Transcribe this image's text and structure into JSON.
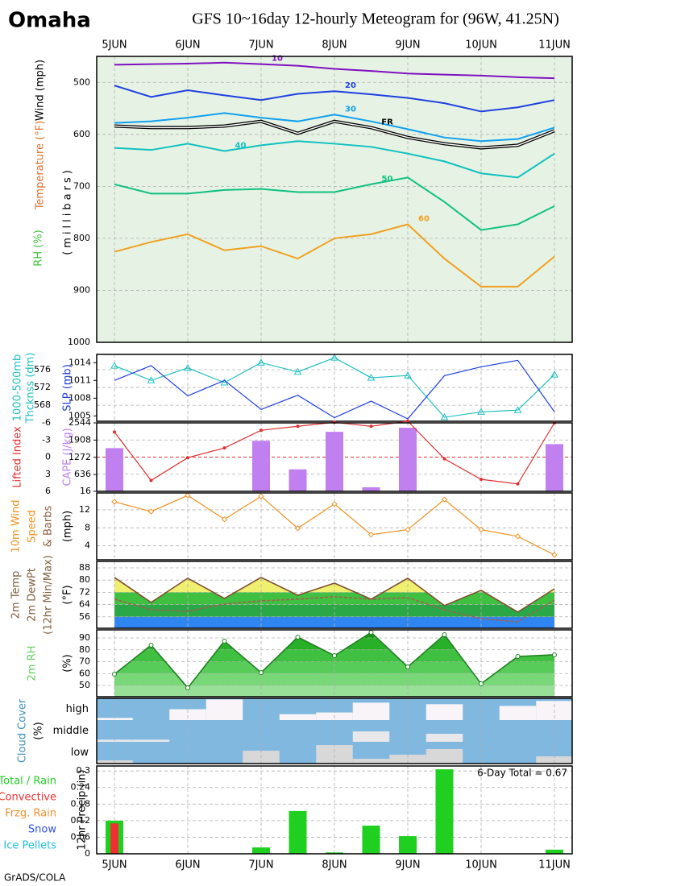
{
  "header": {
    "city": "Omaha",
    "title": "GFS 10~16day 12-hourly Meteogram for (96W, 41.25N)"
  },
  "footer": "GrADS/COLA",
  "chart_data": [
    {
      "type": "contour",
      "categories": [
        "5JUN",
        null,
        "6JUN",
        null,
        "7JUN",
        null,
        "8JUN",
        null,
        "9JUN",
        null,
        "10JUN",
        null,
        "11JUN"
      ],
      "ylabels": [
        {
          "text": "Wind (mph)",
          "color": "#000000"
        },
        {
          "text": "Temperature (°F)",
          "color": "#e07030"
        },
        {
          "text": "RH (%)",
          "color": "#40c040"
        },
        {
          "text": "(millibars)",
          "color": "#000000"
        }
      ],
      "ylim": [
        1000,
        450
      ],
      "yticks": [
        500,
        600,
        700,
        800,
        900,
        1000
      ],
      "grid": true,
      "background": "#e6f3e4",
      "series": [
        {
          "name": "10",
          "color": "#8010c0",
          "values": [
            466,
            465,
            464,
            462,
            465,
            468,
            474,
            478,
            483,
            485,
            487,
            490,
            492
          ]
        },
        {
          "name": "20",
          "color": "#2040e0",
          "values": [
            506,
            528,
            515,
            525,
            534,
            522,
            517,
            523,
            530,
            540,
            556,
            548,
            534
          ]
        },
        {
          "name": "30",
          "color": "#10a0f0",
          "values": [
            578,
            575,
            568,
            559,
            568,
            575,
            562,
            575,
            590,
            606,
            613,
            609,
            587
          ]
        },
        {
          "name": "FR",
          "color": "#000000",
          "values": [
            584,
            587,
            587,
            584,
            575,
            598,
            575,
            587,
            606,
            618,
            626,
            621,
            593
          ]
        },
        {
          "name": "40",
          "color": "#10c0c0",
          "values": [
            626,
            630,
            618,
            632,
            621,
            613,
            618,
            624,
            637,
            652,
            675,
            683,
            637
          ]
        },
        {
          "name": "50",
          "color": "#10c080",
          "values": [
            696,
            714,
            714,
            707,
            705,
            711,
            711,
            696,
            683,
            730,
            784,
            773,
            738
          ]
        },
        {
          "name": "60",
          "color": "#f0a020",
          "values": [
            826,
            807,
            792,
            823,
            815,
            839,
            800,
            792,
            773,
            839,
            893,
            893,
            835
          ]
        }
      ]
    },
    {
      "type": "line",
      "ylabels": [
        {
          "text": "1000-500mb",
          "color": "#20c0c0"
        },
        {
          "text": "Thcknss (dm)",
          "color": "#20c0c0"
        },
        {
          "text": "SLP (mb)",
          "color": "#2040e0"
        }
      ],
      "ylim": [
        564.4,
        579.45
      ],
      "yticks": [
        568,
        572,
        576
      ],
      "y2lim": [
        1004.1,
        1015.4
      ],
      "y2ticks": [
        1005,
        1008,
        1011,
        1014
      ],
      "grid": true,
      "series": [
        {
          "color": "#20c0c0",
          "marker": "triangle",
          "values": [
            576.9,
            573.6,
            576.4,
            573.1,
            577.6,
            575.5,
            578.7,
            574.2,
            574.7,
            565.3,
            566.5,
            566.9,
            574.9
          ]
        },
        {
          "color": "#2040e0",
          "axis": "y2",
          "values": [
            1011.0,
            1013.5,
            1008.4,
            1011.0,
            1006.1,
            1008.5,
            1004.7,
            1007.5,
            1004.5,
            1011.8,
            1013.3,
            1014.4,
            1005.7
          ]
        }
      ]
    },
    {
      "type": "line_bar",
      "ylabels": [
        {
          "text": "Lifted Index",
          "color": "#e03030"
        },
        {
          "text": "CAPE (J/kg)",
          "color": "#c080f0"
        }
      ],
      "ylim": [
        6,
        -6
      ],
      "yticks": [
        -6,
        -3,
        0,
        3,
        6
      ],
      "y2lim": [
        16,
        2544
      ],
      "y2ticks": [
        16,
        636,
        1272,
        1908,
        2544
      ],
      "grid": true,
      "series": [
        {
          "color": "#e03030",
          "marker": "dot",
          "values": [
            -4.4,
            4.1,
            0.1,
            -1.6,
            -4.7,
            -5.4,
            -6.1,
            -5.4,
            -6.3,
            0.3,
            3.9,
            4.7,
            -6.0
          ]
        },
        {
          "color": "#c080f0",
          "axis": "y2",
          "kind": "bar",
          "values": [
            1611,
            null,
            null,
            null,
            1882,
            828,
            2213,
            166,
            2363,
            null,
            null,
            null,
            1761
          ]
        }
      ]
    },
    {
      "type": "line",
      "ylabels": [
        {
          "text": "10m Wind",
          "color": "#f09020"
        },
        {
          "text": "Speed",
          "color": "#f09020"
        },
        {
          "text": "& Barbs",
          "color": "#906040"
        },
        {
          "text": "(mph)",
          "color": "#000000"
        }
      ],
      "ylim": [
        0.9,
        15.75
      ],
      "yticks": [
        4,
        8,
        12
      ],
      "grid": true,
      "series": [
        {
          "color": "#f09020",
          "marker": "diamond",
          "values": [
            13.8,
            11.6,
            15.2,
            9.9,
            15.0,
            7.9,
            13.3,
            6.5,
            7.6,
            14.3,
            7.6,
            6.1,
            2.0
          ]
        }
      ]
    },
    {
      "type": "band_area",
      "ylabels": [
        {
          "text": "2m Temp",
          "color": "#806040"
        },
        {
          "text": "2m DewPt",
          "color": "#806040"
        },
        {
          "text": "(12hr Min/Max)",
          "color": "#806040"
        },
        {
          "text": "(°F)",
          "color": "#000000"
        }
      ],
      "ylim": [
        48.5,
        92.2
      ],
      "yticks": [
        56,
        64,
        72,
        80,
        88
      ],
      "grid": true,
      "band_colors": [
        "#2f86f0",
        "#2aa848",
        "#40c040",
        "#f0f070"
      ],
      "series": [
        {
          "color": "#805030",
          "values": [
            81.7,
            65.4,
            81.2,
            68.0,
            81.7,
            70.1,
            78.0,
            67.5,
            81.2,
            63.3,
            73.3,
            59.1,
            74.3
          ]
        },
        {
          "color": "#a06050",
          "dashed": true,
          "values": [
            67.5,
            60.6,
            59.6,
            64.3,
            66.4,
            67.5,
            69.1,
            67.5,
            68.5,
            60.6,
            54.8,
            52.7,
            66.9
          ]
        }
      ]
    },
    {
      "type": "band_area",
      "ylabels": [
        {
          "text": "2m RH",
          "color": "#60d060"
        },
        {
          "text": "(%)",
          "color": "#000000"
        }
      ],
      "ylim": [
        40.5,
        96.8
      ],
      "yticks": [
        50,
        60,
        70,
        80,
        90
      ],
      "grid": true,
      "band_colors": [
        "#98e098",
        "#78d878",
        "#58cc58",
        "#40c040",
        "#28b028",
        "#149814"
      ],
      "series": [
        {
          "color": "#208020",
          "marker": "circle",
          "values": [
            59.5,
            83.9,
            48.0,
            87.3,
            60.8,
            90.7,
            75.1,
            94.7,
            65.6,
            92.7,
            51.4,
            74.4,
            75.8
          ]
        }
      ]
    },
    {
      "type": "cloud",
      "ylabels": [
        {
          "text": "Cloud Cover",
          "color": "#4090c0"
        },
        {
          "text": "(%)",
          "color": "#000000"
        }
      ],
      "rows": [
        "high",
        "middle",
        "low"
      ],
      "cover_color": "#80b8e0",
      "clear_colors": [
        "#f8f4f8",
        "#e8e8ea",
        "#d8d8d8"
      ],
      "series": [
        {
          "values": [
            90,
            100,
            50,
            5,
            100,
            73,
            65,
            20,
            100,
            27,
            100,
            35,
            12
          ]
        },
        {
          "values": [
            90,
            90,
            100,
            100,
            100,
            100,
            100,
            52,
            100,
            63,
            100,
            100,
            100
          ]
        },
        {
          "values": [
            85,
            100,
            100,
            100,
            41,
            100,
            15,
            78,
            59,
            33,
            100,
            100,
            67
          ]
        }
      ]
    },
    {
      "type": "bar",
      "categories": [
        "5JUN",
        null,
        "6JUN",
        null,
        "7JUN",
        null,
        "8JUN",
        null,
        "9JUN",
        null,
        "10JUN",
        null,
        "11JUN"
      ],
      "ylabels": [
        {
          "text": "12hr Precip (in)",
          "color": "#000000"
        }
      ],
      "ylim": [
        0,
        0.318
      ],
      "yticks": [
        0,
        0.06,
        0.12,
        0.18,
        0.24,
        0.3
      ],
      "grid": true,
      "total_label": "6-Day Total = 0.67",
      "series": [
        {
          "name": "Total / Rain",
          "color": "#20d020",
          "values": [
            0.12,
            0,
            0,
            0,
            0.023,
            0.155,
            0.005,
            0.102,
            0.064,
            0.306,
            0,
            0,
            0.015
          ]
        },
        {
          "name": "Convective",
          "color": "#f03030",
          "values": [
            0.11,
            0,
            0,
            0,
            0,
            0,
            0,
            0,
            0,
            0,
            0,
            0,
            0
          ]
        },
        {
          "name": "Frzg. Rain",
          "color": "#f09030",
          "values": [
            0,
            0,
            0,
            0,
            0,
            0,
            0,
            0,
            0,
            0,
            0,
            0,
            0
          ]
        },
        {
          "name": "Snow",
          "color": "#3050f0",
          "values": [
            0,
            0,
            0,
            0,
            0,
            0,
            0,
            0,
            0,
            0,
            0,
            0,
            0
          ]
        },
        {
          "name": "Ice Pellets",
          "color": "#20c0e0",
          "values": [
            0,
            0,
            0,
            0,
            0,
            0,
            0,
            0,
            0,
            0,
            0,
            0,
            0
          ]
        }
      ]
    }
  ]
}
